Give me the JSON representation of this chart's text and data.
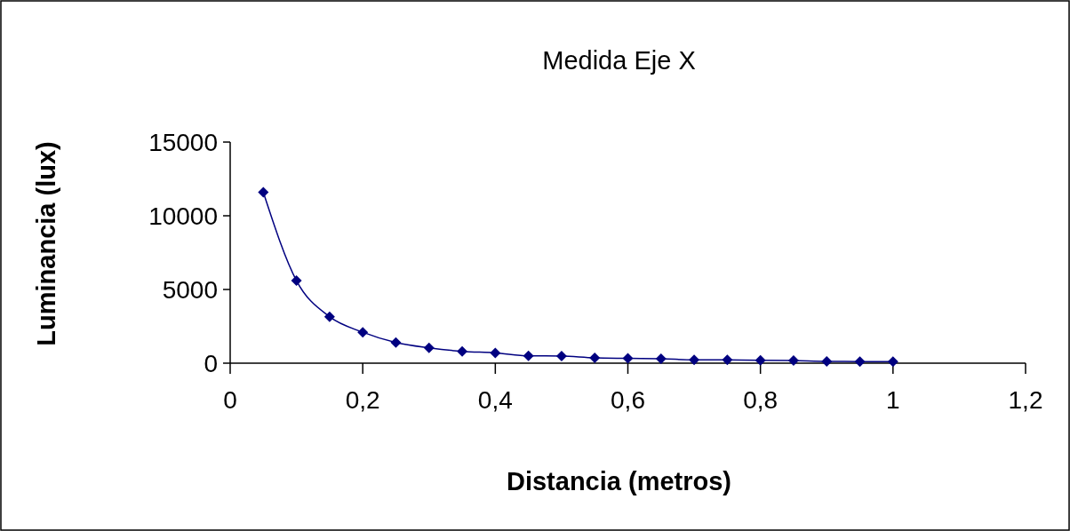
{
  "chart_data": {
    "type": "line",
    "title": "Medida Eje X",
    "xlabel": "Distancia (metros)",
    "ylabel": "Luminancia (lux)",
    "xlim": [
      0,
      1.2
    ],
    "xticks": [
      0,
      {
        "value": 0.2,
        "label": "0,2"
      },
      {
        "value": 0.4,
        "label": "0,4"
      },
      {
        "value": 0.6,
        "label": "0,6"
      },
      {
        "value": 0.8,
        "label": "0,8"
      },
      1,
      {
        "value": 1.2,
        "label": "1,2"
      }
    ],
    "ylim": [
      0,
      15000
    ],
    "yticks": [
      0,
      5000,
      10000,
      15000
    ],
    "grid": false,
    "marker": "diamond",
    "line_style": "solid",
    "x": [
      0.05,
      0.1,
      0.15,
      0.2,
      0.25,
      0.3,
      0.35,
      0.4,
      0.45,
      0.5,
      0.55,
      0.6,
      0.65,
      0.7,
      0.75,
      0.8,
      0.85,
      0.9,
      0.95,
      1
    ],
    "series": [
      {
        "color": "#000080",
        "values": [
          11600,
          5600,
          3150,
          2100,
          1400,
          1040,
          800,
          700,
          500,
          480,
          360,
          330,
          300,
          230,
          220,
          200,
          180,
          120,
          110,
          100
        ]
      }
    ]
  }
}
